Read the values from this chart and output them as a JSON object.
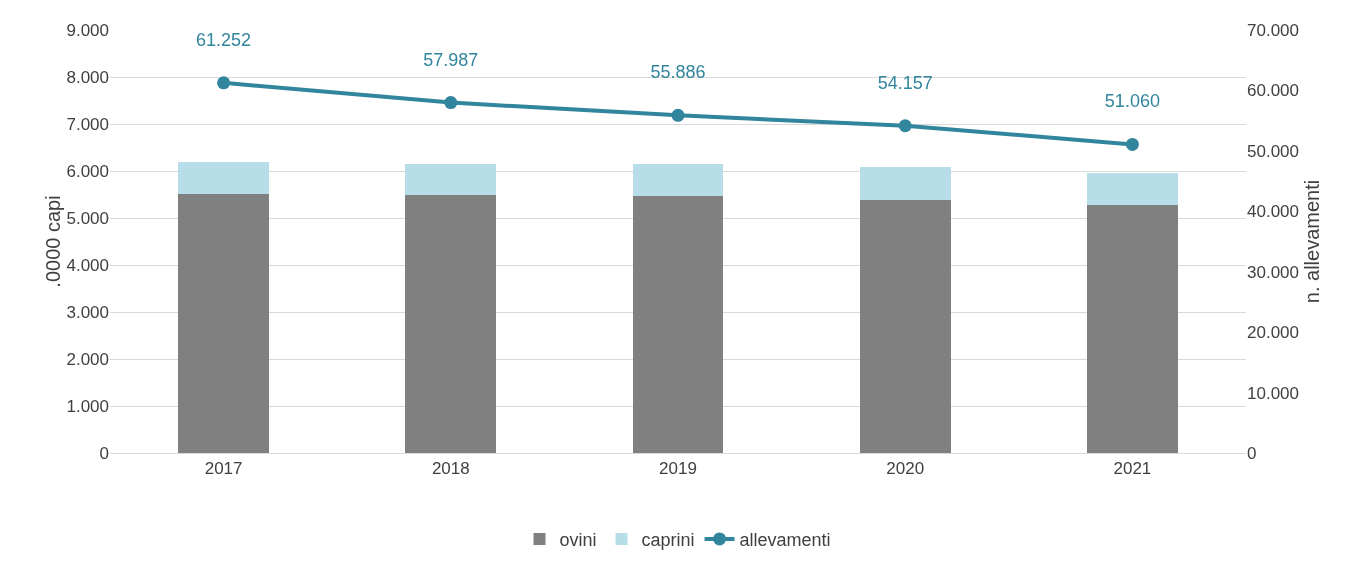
{
  "chart_data": {
    "type": "bar",
    "stacked": true,
    "categories": [
      "2017",
      "2018",
      "2019",
      "2020",
      "2021"
    ],
    "ylabel": ".0000 capi",
    "y2label": "n. allevamenti",
    "series": [
      {
        "name": "ovini",
        "color": "#808080",
        "values": [
          5520,
          5480,
          5460,
          5390,
          5280
        ]
      },
      {
        "name": "caprini",
        "color": "#b7dde8",
        "values": [
          680,
          670,
          690,
          700,
          680
        ]
      },
      {
        "name": "allevamenti",
        "type": "line",
        "axis": "y2",
        "color": "#31859c",
        "marker": "circle",
        "values": [
          61252,
          57987,
          55886,
          54157,
          51060
        ],
        "value_labels": [
          "61.252",
          "57.987",
          "55.886",
          "54.157",
          "51.060"
        ]
      }
    ],
    "ylim": [
      0,
      9000
    ],
    "yticks": [
      {
        "value": 0,
        "label": "0"
      },
      {
        "value": 1000,
        "label": "1.000"
      },
      {
        "value": 2000,
        "label": "2.000"
      },
      {
        "value": 3000,
        "label": "3.000"
      },
      {
        "value": 4000,
        "label": "4.000"
      },
      {
        "value": 5000,
        "label": "5.000"
      },
      {
        "value": 6000,
        "label": "6.000"
      },
      {
        "value": 7000,
        "label": "7.000"
      },
      {
        "value": 8000,
        "label": "8.000"
      },
      {
        "value": 9000,
        "label": "9.000"
      }
    ],
    "y2lim": [
      0,
      70000
    ],
    "y2ticks": [
      {
        "value": 0,
        "label": "0"
      },
      {
        "value": 10000,
        "label": "10.000"
      },
      {
        "value": 20000,
        "label": "20.000"
      },
      {
        "value": 30000,
        "label": "30.000"
      },
      {
        "value": 40000,
        "label": "40.000"
      },
      {
        "value": 50000,
        "label": "50.000"
      },
      {
        "value": 60000,
        "label": "60.000"
      },
      {
        "value": 70000,
        "label": "70.000"
      }
    ],
    "grid": "y",
    "legend": "bottom"
  }
}
